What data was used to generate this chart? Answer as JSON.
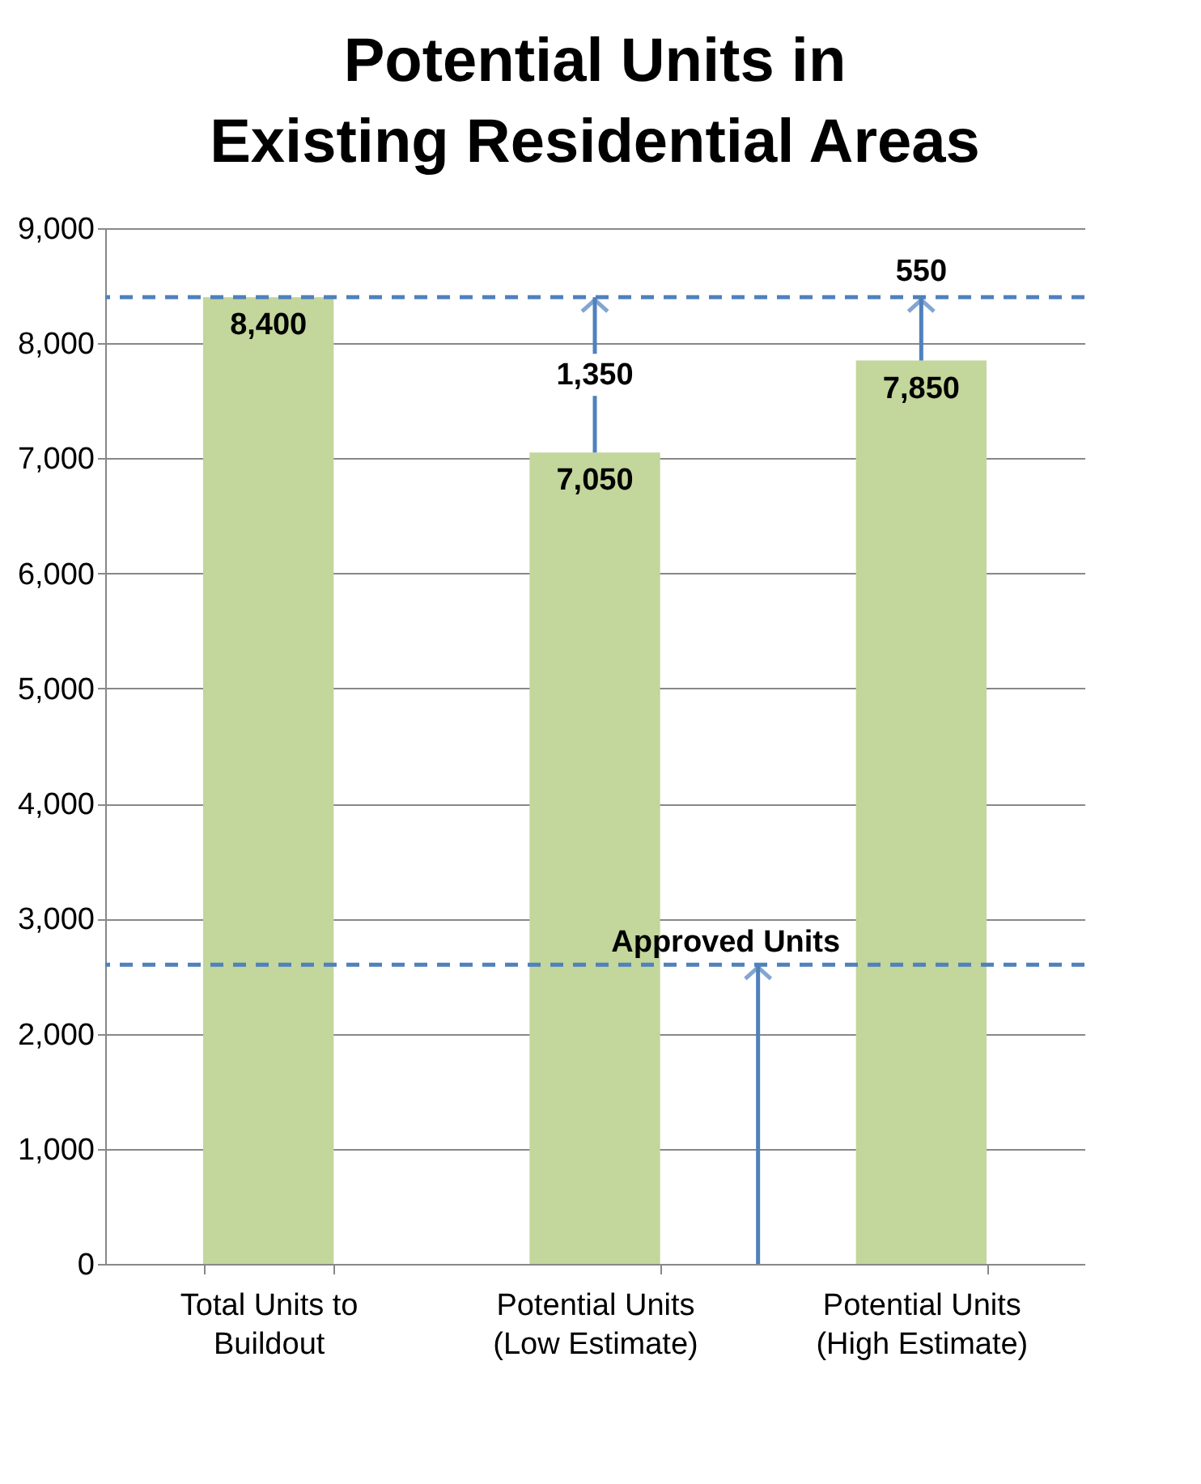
{
  "chart_data": {
    "type": "bar",
    "title": [
      "Potential Units in",
      "Existing Residential Areas"
    ],
    "categories": [
      "Total Units to Buildout",
      "Potential Units (Low Estimate)",
      "Potential Units (High Estimate)"
    ],
    "values": [
      8400,
      7050,
      7850
    ],
    "color": "#c3d69b",
    "value_labels": [
      "8,400",
      "7,050",
      "7,850"
    ],
    "ylim": [
      0,
      9000
    ],
    "yticks": [
      {
        "value": 0,
        "label": "0"
      },
      {
        "value": 1000,
        "label": "1,000"
      },
      {
        "value": 2000,
        "label": "2,000"
      },
      {
        "value": 3000,
        "label": "3,000"
      },
      {
        "value": 4000,
        "label": "4,000"
      },
      {
        "value": 5000,
        "label": "5,000"
      },
      {
        "value": 6000,
        "label": "6,000"
      },
      {
        "value": 7000,
        "label": "7,000"
      },
      {
        "value": 8000,
        "label": "8,000"
      },
      {
        "value": 9000,
        "label": "9,000"
      }
    ],
    "grid": "y",
    "ref_lines": [
      {
        "axis": "y",
        "value": 8400,
        "color": "#4f81bd",
        "line_style": "dashed"
      },
      {
        "axis": "y",
        "value": 2600,
        "label": "Approved Units",
        "color": "#4f81bd",
        "line_style": "dashed"
      }
    ],
    "annotations": [
      {
        "text": "1,350",
        "x": "Potential Units (Low Estimate)",
        "y": 8400
      },
      {
        "text": "550",
        "x": "Potential Units (High Estimate)",
        "y": 8400
      }
    ]
  }
}
